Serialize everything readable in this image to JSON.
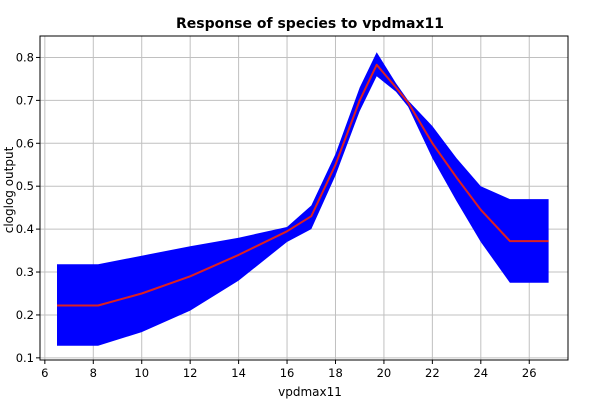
{
  "chart_data": {
    "type": "area",
    "title": "Response of species to vpdmax11",
    "xlabel": "vpdmax11",
    "ylabel": "cloglog output",
    "xlim": [
      5.8,
      27.6
    ],
    "ylim": [
      0.095,
      0.85
    ],
    "xticks": [
      6,
      8,
      10,
      12,
      14,
      16,
      18,
      20,
      22,
      24,
      26
    ],
    "yticks": [
      0.1,
      0.2,
      0.3,
      0.4,
      0.5,
      0.6,
      0.7,
      0.8
    ],
    "grid": true,
    "band_color": "#0000ff",
    "line_color": "#dd2020",
    "mean": {
      "x": [
        6.5,
        8.2,
        10,
        12,
        14,
        16,
        17.0,
        18,
        19,
        19.7,
        20.5,
        21,
        22,
        23,
        24,
        25.2,
        26.8
      ],
      "y": [
        0.222,
        0.222,
        0.25,
        0.29,
        0.34,
        0.395,
        0.43,
        0.55,
        0.7,
        0.783,
        0.73,
        0.695,
        0.6,
        0.52,
        0.445,
        0.372,
        0.372
      ]
    },
    "upper": {
      "x": [
        6.5,
        8.2,
        10,
        12,
        14,
        16,
        17.0,
        18,
        19,
        19.7,
        20.5,
        21,
        22,
        23,
        24,
        25.2,
        26.8
      ],
      "y": [
        0.318,
        0.318,
        0.338,
        0.36,
        0.38,
        0.405,
        0.455,
        0.575,
        0.73,
        0.812,
        0.74,
        0.7,
        0.64,
        0.565,
        0.5,
        0.47,
        0.47
      ]
    },
    "lower": {
      "x": [
        6.5,
        8.2,
        10,
        12,
        14,
        16,
        17.0,
        18,
        19,
        19.7,
        20.5,
        21,
        22,
        23,
        24,
        25.2,
        26.8
      ],
      "y": [
        0.128,
        0.128,
        0.16,
        0.21,
        0.28,
        0.37,
        0.4,
        0.525,
        0.675,
        0.756,
        0.72,
        0.685,
        0.565,
        0.465,
        0.37,
        0.275,
        0.275
      ]
    }
  }
}
